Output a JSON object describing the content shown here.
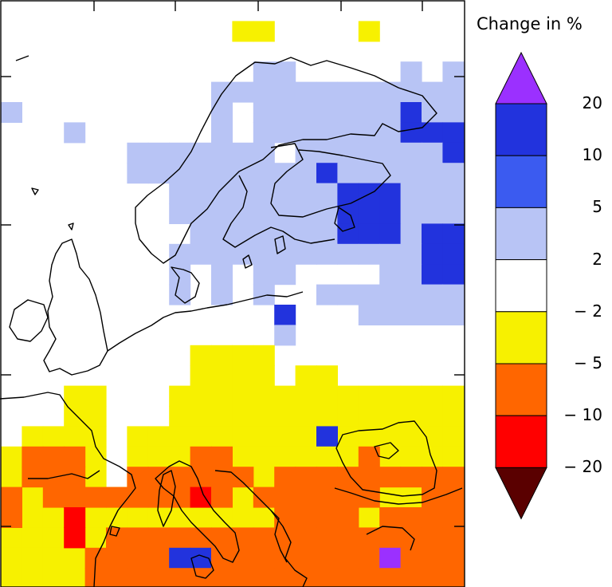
{
  "legend": {
    "title": "Change in %",
    "labels": [
      "20",
      "10",
      "5",
      "2",
      "− 2",
      "− 5",
      "− 10",
      "− 20"
    ],
    "colors_top_to_bottom": [
      "#9b30ff",
      "#2233dd",
      "#3b5bf0",
      "#b8c4f5",
      "#ffffff",
      "#f7f100",
      "#ff6600",
      "#ff0000",
      "#5a0000"
    ]
  },
  "classes": {
    "L": {
      "color": "#b8c4f5",
      "range": "2 to 5"
    },
    "M": {
      "color": "#3b5bf0",
      "range": "5 to 10"
    },
    "D": {
      "color": "#2233dd",
      "range": "10 to 20"
    },
    "P": {
      "color": "#9b30ff",
      "range": "> 20"
    },
    "Y": {
      "color": "#f7f100",
      "range": "− 2 to − 5"
    },
    "O": {
      "color": "#ff6600",
      "range": "− 5 to − 10"
    },
    "R": {
      "color": "#ff0000",
      "range": "− 10 to − 20"
    },
    "B": {
      "color": "#5a0000",
      "range": "< − 20"
    }
  },
  "grid_rows": [
    "......................",
    "...........YY....Y....",
    "......................",
    "............LL.....L.L",
    "..........LLLLLLLLLLLL",
    "L.........L.LLLLLLLDLL",
    "...L......L.LLLLLLLDDD",
    "......LLLLLLL.LLLLLLLD",
    "......LLLLLLLLLDLLLLLL",
    "........LLLLLLLLDDDLLL",
    "........LLLLLLLLDDDLLL",
    ".........LLLLLLLDDDLDD",
    "........LLLLLLLLLLLLDD",
    "........L.L.LL....LLDD",
    "........L.L.L..LLLLLLL",
    ".............D...LLLLL",
    ".............L........",
    ".........YYYY.........",
    ".........YYYY.YY......",
    "...YY...YYYYYYYYYYYYYY",
    "...YY...YYYYYYYYYYYYYY",
    ".YYYY.YYYYYYYYYYYYYYYY",
    "YYYYY.YYYYYYYYYYYYYYYY",
    "YYYYY.YYYYYYYYYYYYYYYY",
    "YYYYYYYYYYYYYYYYYYYYYY",
    "YYYYYYYYYYYYYYYYYYYYYY",
    "YYYYYYYYYYYYYYYYYYYYYY",
    "YYYYYYYYYYYYYYYYYYYYYY",
    "YYYYYYYYYYYYYYYYYYYYYY"
  ],
  "overlay_rows": [
    "......................",
    "......................",
    "......................",
    "......................",
    "......................",
    "......................",
    "......................",
    "......................",
    "......................",
    "......................",
    "......................",
    "......................",
    "......................",
    "......................",
    "......................",
    "......................",
    "......................",
    "......................",
    "......................",
    "......................",
    "......................",
    "...............D......",
    ".OOO.....OO.YY.YYO....",
    ".OOO..OOOOOO.OOOOOOOOO",
    "O.OOOOOOORO.OOOOOO..OO",
    "O..R.........OOOO.OOOO",
    "...R.OOOOOOOOOOOOOOOOO",
    "....OOOODDOOOOOOOOPOOO",
    "....OOOOOOOOOOOOOOOOOO"
  ]
}
